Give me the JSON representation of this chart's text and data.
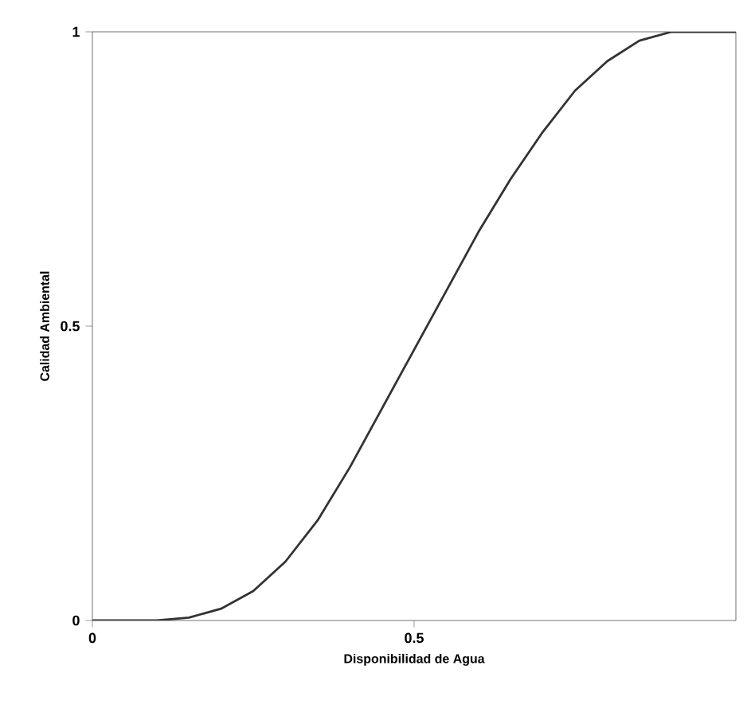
{
  "chart_data": {
    "type": "line",
    "xlabel": "Disponibilidad de Agua",
    "ylabel": "Calidad Ambiental",
    "x": [
      0,
      0.1,
      0.15,
      0.2,
      0.25,
      0.3,
      0.35,
      0.4,
      0.45,
      0.5,
      0.55,
      0.6,
      0.65,
      0.7,
      0.75,
      0.8,
      0.85,
      0.9,
      0.95,
      1.0
    ],
    "series": [
      {
        "color": "#333333",
        "values": [
          0,
          0,
          0.005,
          0.02,
          0.05,
          0.1,
          0.17,
          0.26,
          0.36,
          0.46,
          0.56,
          0.66,
          0.75,
          0.83,
          0.9,
          0.95,
          0.985,
          1,
          1,
          1
        ]
      }
    ],
    "xlim": [
      0,
      1
    ],
    "ylim": [
      0,
      1
    ],
    "xticks": [
      0,
      0.5
    ],
    "yticks": [
      0,
      0.5,
      1
    ],
    "marker": "none",
    "line_style": "solid"
  }
}
